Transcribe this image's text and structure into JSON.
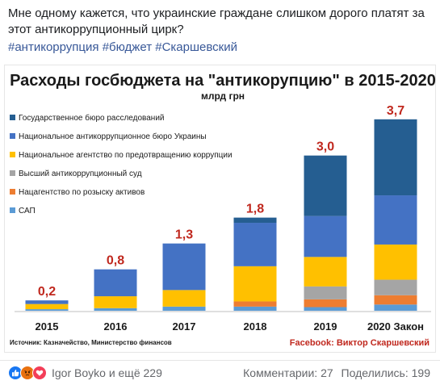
{
  "post": {
    "text": "Мне одному кажется, что украинские граждане слишком дорого платят за этот антикоррупционный цирк?",
    "hashtags": [
      "#антикоррупция",
      "#бюджет",
      "#Скаршевский"
    ]
  },
  "chart_data": {
    "type": "bar",
    "stacked": true,
    "title": "Расходы госбюджета на \"антикорупцию\" в 2015-2020",
    "subtitle": "млрд грн",
    "categories": [
      "2015",
      "2016",
      "2017",
      "2018",
      "2019",
      "2020 Закон"
    ],
    "totals": [
      0.2,
      0.8,
      1.3,
      1.8,
      3.0,
      3.7
    ],
    "total_labels": [
      "0,2",
      "0,8",
      "1,3",
      "1,8",
      "3,0",
      "3,7"
    ],
    "ylim": [
      0,
      3.9
    ],
    "grid": false,
    "legend_position": "top-left",
    "series": [
      {
        "name": "САП",
        "color": "#5B9BD5",
        "values": [
          0.03,
          0.05,
          0.08,
          0.08,
          0.07,
          0.12
        ]
      },
      {
        "name": "Нацагентство по розыску активов",
        "color": "#ED7D31",
        "values": [
          0.0,
          0.0,
          0.0,
          0.1,
          0.15,
          0.18
        ]
      },
      {
        "name": "Высший антикоррупционный суд",
        "color": "#A5A5A5",
        "values": [
          0.0,
          0.0,
          0.0,
          0.0,
          0.25,
          0.3
        ]
      },
      {
        "name": "Национальное агентство по предотвращению коррупции",
        "color": "#FFC000",
        "values": [
          0.1,
          0.23,
          0.32,
          0.68,
          0.57,
          0.68
        ]
      },
      {
        "name": "Национальное антикоррупционное бюро Украины",
        "color": "#4472C4",
        "values": [
          0.07,
          0.52,
          0.9,
          0.84,
          0.79,
          0.95
        ]
      },
      {
        "name": "Государственное бюро расследований",
        "color": "#255E91",
        "values": [
          0.0,
          0.0,
          0.0,
          0.1,
          1.17,
          1.47
        ]
      }
    ],
    "source": "Источник: Казначейство, Министерство финансов",
    "credit": "Facebook: Виктор Скаршевский"
  },
  "footer": {
    "reaction_icons": [
      "like-icon",
      "angry-icon",
      "love-icon"
    ],
    "reaction_names": "Igor Boyko и ещё 229",
    "comments": "Комментарии: 27",
    "shares": "Поделились: 199"
  },
  "colors": {
    "title": "#1a1a1a",
    "total_label": "#C0281E",
    "link": "#385898",
    "credit": "#C0281E",
    "like": "#1877F2",
    "angry": "#E9710F",
    "love": "#F33E58"
  }
}
